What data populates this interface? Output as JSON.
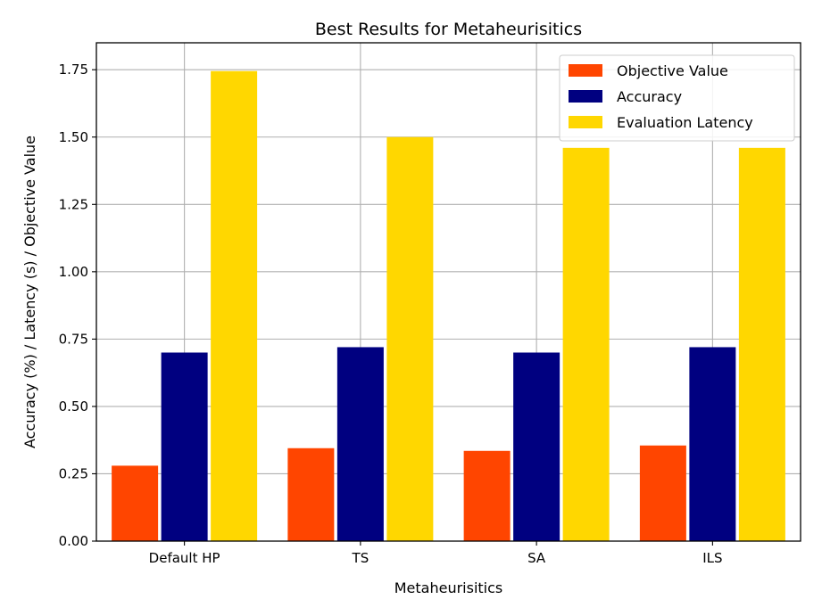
{
  "chart_data": {
    "type": "bar",
    "title": "Best Results for Metaheurisitics",
    "xlabel": "Metaheurisitics",
    "ylabel": "Accuracy (%) / Latency (s) / Objective Value",
    "categories": [
      "Default HP",
      "TS",
      "SA",
      "ILS"
    ],
    "series": [
      {
        "name": "Objective Value",
        "color": "#ff4500",
        "values": [
          0.28,
          0.345,
          0.335,
          0.355
        ]
      },
      {
        "name": "Accuracy",
        "color": "#000080",
        "values": [
          0.7,
          0.72,
          0.7,
          0.72
        ]
      },
      {
        "name": "Evaluation Latency",
        "color": "#ffd700",
        "values": [
          1.745,
          1.5,
          1.46,
          1.46
        ]
      }
    ],
    "ylim": [
      0,
      1.85
    ],
    "yticks": [
      "0.00",
      "0.25",
      "0.50",
      "0.75",
      "1.00",
      "1.25",
      "1.50",
      "1.75"
    ],
    "grid": true,
    "legend_position": "top-right"
  }
}
